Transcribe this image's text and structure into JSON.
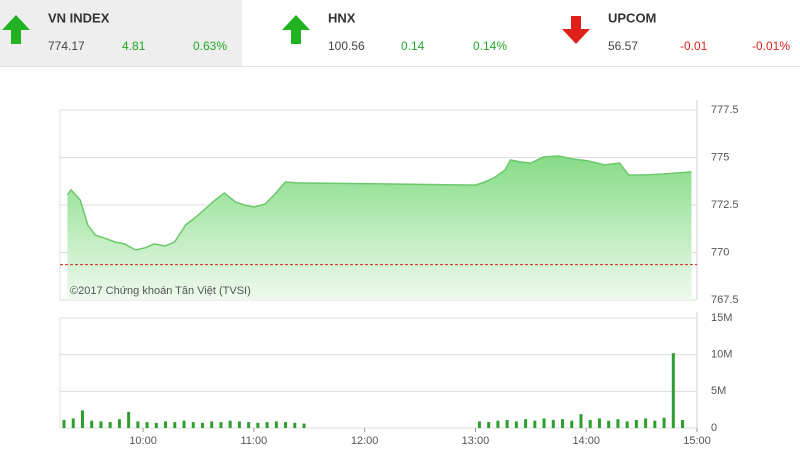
{
  "header": {
    "indices": [
      {
        "name": "VN INDEX",
        "value": "774.17",
        "change": "4.81",
        "percent": "0.63%",
        "direction": "up",
        "color": "#22a822"
      },
      {
        "name": "HNX",
        "value": "100.56",
        "change": "0.14",
        "percent": "0.14%",
        "direction": "up",
        "color": "#22a822"
      },
      {
        "name": "UPCOM",
        "value": "56.57",
        "change": "-0.01",
        "percent": "-0.01%",
        "direction": "down",
        "color": "#e0201b"
      }
    ]
  },
  "chart_data": [
    {
      "type": "area",
      "annotation": "©2017 Chứng khoán Tân Việt (TVSI)",
      "x": [
        "09:19",
        "09:21",
        "09:26",
        "09:30",
        "09:34",
        "09:39",
        "09:45",
        "09:50",
        "09:56",
        "10:01",
        "10:06",
        "10:12",
        "10:17",
        "10:23",
        "10:28",
        "10:33",
        "10:39",
        "10:44",
        "10:50",
        "10:55",
        "11:00",
        "11:06",
        "11:11",
        "11:17",
        "11:25",
        "11:30",
        "13:00",
        "13:05",
        "13:10",
        "13:16",
        "13:19",
        "13:25",
        "13:30",
        "13:37",
        "13:45",
        "13:53",
        "14:01",
        "14:10",
        "14:18",
        "14:23",
        "14:31",
        "14:42",
        "14:57"
      ],
      "values": [
        773.03,
        773.3,
        772.76,
        771.45,
        770.92,
        770.76,
        770.55,
        770.45,
        770.13,
        770.24,
        770.45,
        770.34,
        770.55,
        771.45,
        771.82,
        772.24,
        772.76,
        773.13,
        772.66,
        772.5,
        772.39,
        772.55,
        773.03,
        773.71,
        773.66,
        773.66,
        773.55,
        773.71,
        773.92,
        774.34,
        774.87,
        774.76,
        774.71,
        775.03,
        775.08,
        774.92,
        774.82,
        774.61,
        774.71,
        774.08,
        774.08,
        774.13,
        774.24
      ],
      "color": "#6cc96c",
      "reference_line": 769.36,
      "reference_color": "#d9261c",
      "xlim": [
        "09:15",
        "15:00"
      ],
      "ylim": [
        767.5,
        777.5
      ],
      "yticks": [
        767.5,
        770,
        772.5,
        775,
        777.5
      ],
      "grid": true
    },
    {
      "type": "bar",
      "x": [
        "09:15",
        "09:20",
        "09:25",
        "09:30",
        "09:35",
        "09:40",
        "09:45",
        "09:50",
        "09:55",
        "10:00",
        "10:05",
        "10:10",
        "10:15",
        "10:20",
        "10:25",
        "10:30",
        "10:35",
        "10:40",
        "10:45",
        "10:50",
        "10:55",
        "11:00",
        "11:05",
        "11:10",
        "11:15",
        "11:20",
        "11:25",
        "13:00",
        "13:05",
        "13:10",
        "13:15",
        "13:20",
        "13:25",
        "13:30",
        "13:35",
        "13:40",
        "13:45",
        "13:50",
        "13:55",
        "14:00",
        "14:05",
        "14:10",
        "14:15",
        "14:20",
        "14:25",
        "14:30",
        "14:35",
        "14:40",
        "14:45",
        "14:50"
      ],
      "values": [
        1100000,
        1300000,
        2400000,
        1000000,
        900000,
        800000,
        1200000,
        2200000,
        900000,
        800000,
        700000,
        900000,
        800000,
        1000000,
        800000,
        700000,
        900000,
        800000,
        1000000,
        900000,
        800000,
        700000,
        800000,
        900000,
        800000,
        700000,
        600000,
        900000,
        800000,
        1000000,
        1100000,
        900000,
        1200000,
        1000000,
        1300000,
        1100000,
        1200000,
        1000000,
        1900000,
        1100000,
        1300000,
        1000000,
        1200000,
        900000,
        1100000,
        1300000,
        1000000,
        1400000,
        10200000,
        1100000
      ],
      "color": "#2e9e2e",
      "xlim": [
        "09:15",
        "15:00"
      ],
      "xticks": [
        "10:00",
        "11:00",
        "12:00",
        "13:00",
        "14:00",
        "15:00"
      ],
      "ylim": [
        0,
        15000000
      ],
      "yticks": [
        {
          "value": 0,
          "label": "0"
        },
        {
          "value": 5000000,
          "label": "5M"
        },
        {
          "value": 10000000,
          "label": "10M"
        },
        {
          "value": 15000000,
          "label": "15M"
        }
      ],
      "grid": true
    }
  ]
}
